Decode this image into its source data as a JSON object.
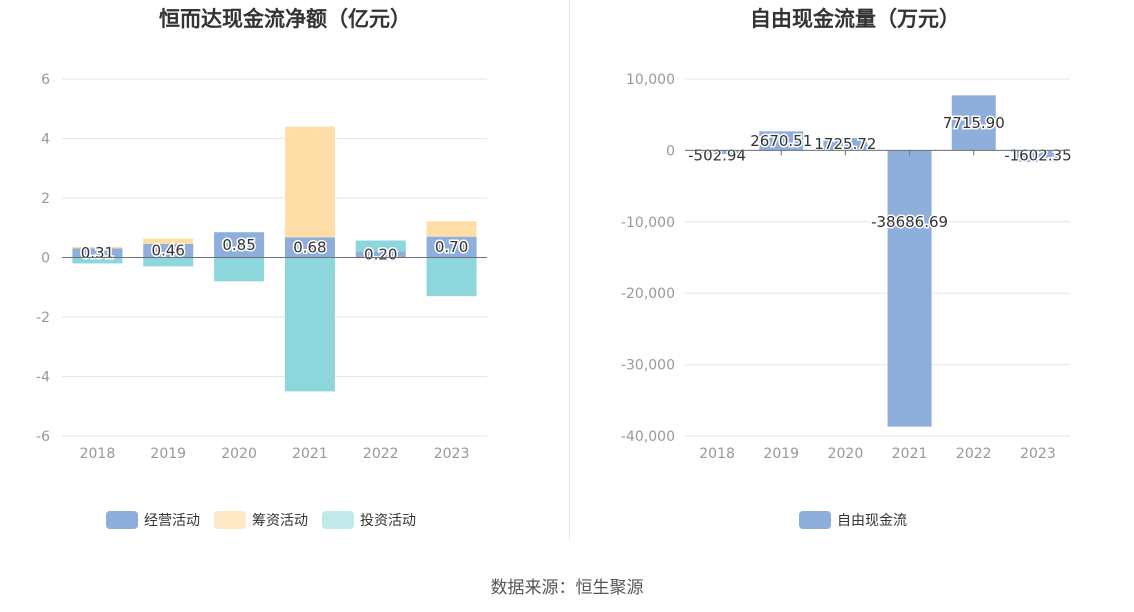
{
  "chart_data": [
    {
      "type": "bar",
      "stacked": true,
      "title": "恒而达现金流净额（亿元）",
      "categories": [
        "2018",
        "2019",
        "2020",
        "2021",
        "2022",
        "2023"
      ],
      "ylim": [
        -6,
        6
      ],
      "yticks": [
        "6",
        "4",
        "2",
        "0",
        "-2",
        "-4",
        "-6"
      ],
      "series": [
        {
          "name": "经营活动",
          "color": "#8eaedc",
          "values": [
            0.31,
            0.46,
            0.85,
            0.68,
            0.2,
            0.7
          ]
        },
        {
          "name": "筹资活动",
          "color": "#ffdda6",
          "values": [
            0.05,
            0.18,
            0.0,
            3.72,
            0.0,
            0.52
          ]
        },
        {
          "name": "投资活动",
          "color": "#8dd6db",
          "values": [
            -0.2,
            -0.3,
            -0.8,
            -4.5,
            0.37,
            -1.3
          ]
        }
      ],
      "data_labels": [
        "0.31",
        "0.46",
        "0.85",
        "0.68",
        "0.20",
        "0.70"
      ],
      "grid": true,
      "legend": "bottom"
    },
    {
      "type": "bar",
      "title": "自由现金流量（万元）",
      "categories": [
        "2018",
        "2019",
        "2020",
        "2021",
        "2022",
        "2023"
      ],
      "ylim": [
        -40000,
        10000
      ],
      "yticks": [
        "10,000",
        "0",
        "-10,000",
        "-20,000",
        "-30,000",
        "-40,000"
      ],
      "series": [
        {
          "name": "自由现金流",
          "color": "#8eaedc",
          "values": [
            -502.94,
            2670.51,
            1725.72,
            -38686.69,
            7715.9,
            -1602.35
          ]
        }
      ],
      "data_labels": [
        "-502.94",
        "2670.51",
        "1725.72",
        "-38686.69",
        "7715.90",
        "-1602.35"
      ],
      "grid": true,
      "legend": "bottom"
    }
  ],
  "source": "数据来源：恒生聚源"
}
